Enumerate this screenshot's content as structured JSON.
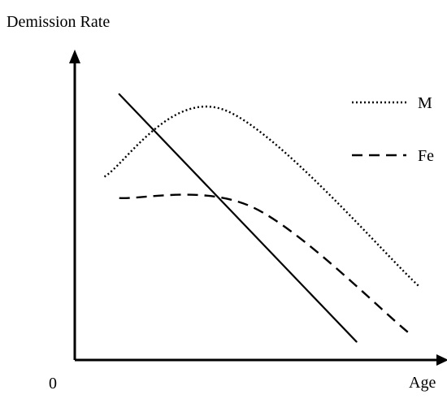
{
  "chart_data": {
    "type": "line",
    "title": "",
    "ylabel": "Demission Rate",
    "xlabel": "Age",
    "origin_label": "0",
    "grid": false,
    "legend_position": "top-right",
    "axis_color": "#000000",
    "series": [
      {
        "name": "M",
        "style": "dotted",
        "color": "#000000",
        "points": [
          [
            0.08,
            0.6
          ],
          [
            0.4,
            0.82
          ],
          [
            0.93,
            0.24
          ]
        ]
      },
      {
        "name": "Fe",
        "style": "dashed",
        "color": "#000000",
        "points": [
          [
            0.12,
            0.53
          ],
          [
            0.48,
            0.5
          ],
          [
            0.9,
            0.09
          ]
        ]
      },
      {
        "name": "",
        "style": "solid",
        "color": "#000000",
        "points": [
          [
            0.12,
            0.87
          ],
          [
            0.76,
            0.06
          ]
        ]
      }
    ]
  }
}
